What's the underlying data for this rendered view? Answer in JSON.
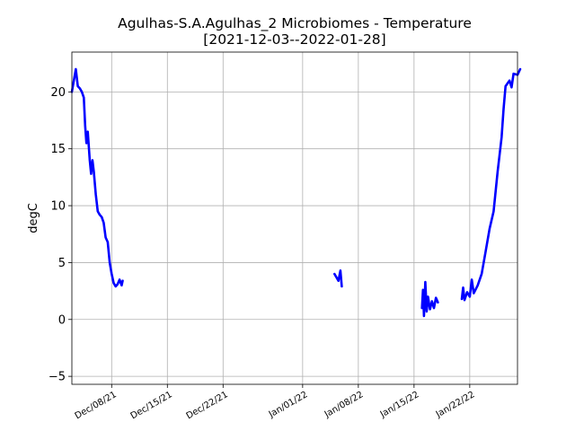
{
  "chart_data": {
    "type": "line",
    "title_line1": "Agulhas-S.A.Agulhas_2 Microbiomes - Temperature",
    "title_line2": "[2021-12-03--2022-01-28]",
    "xlabel": "",
    "ylabel": "degC",
    "xlim": [
      "2021-12-03",
      "2022-01-28"
    ],
    "ylim": [
      -5.7,
      23.5
    ],
    "grid": true,
    "line_color": "#0000ff",
    "x_ticks": [
      {
        "date": "2021-12-08",
        "label": "Dec/08/21"
      },
      {
        "date": "2021-12-15",
        "label": "Dec/15/21"
      },
      {
        "date": "2021-12-22",
        "label": "Dec/22/21"
      },
      {
        "date": "2022-01-01",
        "label": "Jan/01/22"
      },
      {
        "date": "2022-01-08",
        "label": "Jan/08/22"
      },
      {
        "date": "2022-01-15",
        "label": "Jan/15/22"
      },
      {
        "date": "2022-01-22",
        "label": "Jan/22/22"
      }
    ],
    "y_ticks": [
      -5,
      0,
      5,
      10,
      15,
      20
    ],
    "series": [
      {
        "segments": [
          [
            [
              "2021-12-03T00:00",
              20.0
            ],
            [
              "2021-12-03T06:00",
              21.0
            ],
            [
              "2021-12-03T12:00",
              22.0
            ],
            [
              "2021-12-03T18:00",
              20.5
            ],
            [
              "2021-12-04T00:00",
              20.3
            ],
            [
              "2021-12-04T06:00",
              20.0
            ],
            [
              "2021-12-04T12:00",
              19.5
            ],
            [
              "2021-12-04T16:00",
              17.0
            ],
            [
              "2021-12-04T20:00",
              15.5
            ],
            [
              "2021-12-05T00:00",
              16.5
            ],
            [
              "2021-12-05T06:00",
              14.0
            ],
            [
              "2021-12-05T10:00",
              12.8
            ],
            [
              "2021-12-05T14:00",
              14.0
            ],
            [
              "2021-12-05T18:00",
              13.0
            ],
            [
              "2021-12-06T00:00",
              11.0
            ],
            [
              "2021-12-06T06:00",
              9.5
            ],
            [
              "2021-12-06T12:00",
              9.2
            ],
            [
              "2021-12-06T18:00",
              9.0
            ],
            [
              "2021-12-07T00:00",
              8.5
            ],
            [
              "2021-12-07T06:00",
              7.2
            ],
            [
              "2021-12-07T12:00",
              6.8
            ],
            [
              "2021-12-07T18:00",
              5.0
            ],
            [
              "2021-12-08T00:00",
              4.0
            ],
            [
              "2021-12-08T06:00",
              3.2
            ],
            [
              "2021-12-08T12:00",
              2.9
            ],
            [
              "2021-12-08T18:00",
              3.1
            ],
            [
              "2021-12-09T00:00",
              3.5
            ],
            [
              "2021-12-09T06:00",
              3.0
            ],
            [
              "2021-12-09T09:00",
              3.4
            ]
          ],
          [
            [
              "2022-01-05T00:00",
              4.0
            ],
            [
              "2022-01-05T06:00",
              3.7
            ],
            [
              "2022-01-05T12:00",
              3.4
            ],
            [
              "2022-01-05T18:00",
              4.3
            ],
            [
              "2022-01-05T22:00",
              2.9
            ]
          ],
          [
            [
              "2022-01-16T00:00",
              1.0
            ],
            [
              "2022-01-16T03:00",
              2.6
            ],
            [
              "2022-01-16T06:00",
              0.3
            ],
            [
              "2022-01-16T10:00",
              3.3
            ],
            [
              "2022-01-16T14:00",
              0.7
            ],
            [
              "2022-01-16T18:00",
              2.0
            ],
            [
              "2022-01-17T00:00",
              0.9
            ],
            [
              "2022-01-17T06:00",
              1.6
            ],
            [
              "2022-01-17T12:00",
              1.0
            ],
            [
              "2022-01-17T18:00",
              1.9
            ],
            [
              "2022-01-18T00:00",
              1.5
            ]
          ],
          [
            [
              "2022-01-21T00:00",
              1.8
            ],
            [
              "2022-01-21T04:00",
              2.8
            ],
            [
              "2022-01-21T08:00",
              1.7
            ],
            [
              "2022-01-21T16:00",
              2.4
            ],
            [
              "2022-01-22T00:00",
              2.0
            ],
            [
              "2022-01-22T06:00",
              3.5
            ],
            [
              "2022-01-22T12:00",
              2.3
            ],
            [
              "2022-01-23T00:00",
              3.0
            ],
            [
              "2022-01-23T12:00",
              4.0
            ],
            [
              "2022-01-24T00:00",
              6.0
            ],
            [
              "2022-01-24T12:00",
              8.0
            ],
            [
              "2022-01-25T00:00",
              9.5
            ],
            [
              "2022-01-25T12:00",
              13.0
            ],
            [
              "2022-01-26T00:00",
              16.0
            ],
            [
              "2022-01-26T06:00",
              18.5
            ],
            [
              "2022-01-26T12:00",
              20.5
            ],
            [
              "2022-01-27T00:00",
              21.0
            ],
            [
              "2022-01-27T06:00",
              20.4
            ],
            [
              "2022-01-27T12:00",
              21.6
            ],
            [
              "2022-01-28T00:00",
              21.5
            ],
            [
              "2022-01-28T08:00",
              22.0
            ]
          ]
        ]
      }
    ]
  }
}
